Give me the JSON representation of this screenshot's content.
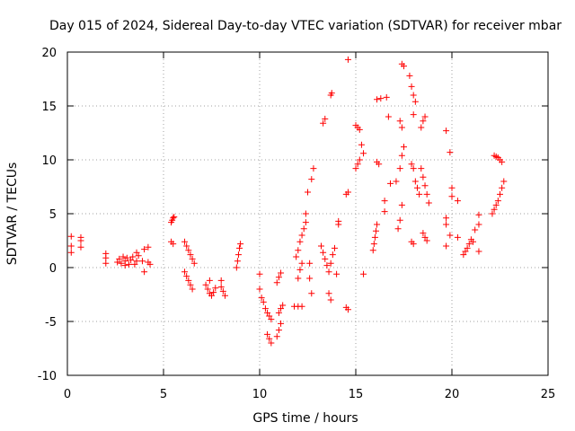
{
  "chart_data": {
    "type": "scatter",
    "title": "Day 015 of 2024, Sidereal Day-to-day VTEC variation (SDTVAR) for receiver mbar",
    "xlabel": "GPS time / hours",
    "ylabel": "SDTVAR / TECUs",
    "xlim": [
      0,
      25
    ],
    "ylim": [
      -10,
      20
    ],
    "xticks": [
      0,
      5,
      10,
      15,
      20,
      25
    ],
    "yticks": [
      -10,
      -5,
      0,
      5,
      10,
      15,
      20
    ],
    "grid": true,
    "marker": "+",
    "color": "#ff0000",
    "series": [
      {
        "name": "SDTVAR",
        "points": [
          [
            0.2,
            2.9
          ],
          [
            0.2,
            2.0
          ],
          [
            0.2,
            1.4
          ],
          [
            0.7,
            2.8
          ],
          [
            0.7,
            2.5
          ],
          [
            0.7,
            1.9
          ],
          [
            2.0,
            1.3
          ],
          [
            2.0,
            0.9
          ],
          [
            2.0,
            0.4
          ],
          [
            2.6,
            0.5
          ],
          [
            2.7,
            0.8
          ],
          [
            2.8,
            0.4
          ],
          [
            2.9,
            1.0
          ],
          [
            3.0,
            0.6
          ],
          [
            3.0,
            0.2
          ],
          [
            3.1,
            0.9
          ],
          [
            3.2,
            0.3
          ],
          [
            3.3,
            0.7
          ],
          [
            3.4,
            1.0
          ],
          [
            3.5,
            0.3
          ],
          [
            3.6,
            1.4
          ],
          [
            3.6,
            0.6
          ],
          [
            3.7,
            1.1
          ],
          [
            3.9,
            0.6
          ],
          [
            4.0,
            1.7
          ],
          [
            4.0,
            -0.4
          ],
          [
            4.2,
            1.9
          ],
          [
            4.2,
            0.5
          ],
          [
            4.3,
            0.3
          ],
          [
            5.4,
            4.2
          ],
          [
            5.45,
            4.4
          ],
          [
            5.5,
            4.6
          ],
          [
            5.55,
            4.7
          ],
          [
            5.4,
            2.4
          ],
          [
            5.5,
            2.2
          ],
          [
            6.1,
            2.4
          ],
          [
            6.2,
            2.0
          ],
          [
            6.3,
            1.6
          ],
          [
            6.4,
            1.2
          ],
          [
            6.5,
            0.8
          ],
          [
            6.6,
            0.4
          ],
          [
            6.1,
            -0.4
          ],
          [
            6.2,
            -0.8
          ],
          [
            6.3,
            -1.2
          ],
          [
            6.4,
            -1.6
          ],
          [
            6.5,
            -2.0
          ],
          [
            7.2,
            -1.6
          ],
          [
            7.3,
            -2.0
          ],
          [
            7.4,
            -2.4
          ],
          [
            7.5,
            -2.6
          ],
          [
            7.6,
            -2.3
          ],
          [
            7.7,
            -1.9
          ],
          [
            7.4,
            -1.2
          ],
          [
            8.0,
            -1.8
          ],
          [
            8.1,
            -2.2
          ],
          [
            8.2,
            -2.6
          ],
          [
            8.0,
            -1.2
          ],
          [
            8.8,
            0.0
          ],
          [
            8.85,
            0.6
          ],
          [
            8.9,
            1.2
          ],
          [
            8.95,
            1.8
          ],
          [
            9.0,
            2.2
          ],
          [
            10.0,
            -0.6
          ],
          [
            10.0,
            -2.0
          ],
          [
            10.1,
            -2.8
          ],
          [
            10.2,
            -3.2
          ],
          [
            10.3,
            -3.8
          ],
          [
            10.4,
            -4.2
          ],
          [
            10.5,
            -4.5
          ],
          [
            10.6,
            -4.8
          ],
          [
            10.4,
            -6.2
          ],
          [
            10.5,
            -6.6
          ],
          [
            10.6,
            -7.0
          ],
          [
            10.9,
            -6.4
          ],
          [
            11.0,
            -5.8
          ],
          [
            11.1,
            -5.2
          ],
          [
            11.0,
            -4.2
          ],
          [
            11.1,
            -3.8
          ],
          [
            11.2,
            -3.5
          ],
          [
            10.9,
            -1.4
          ],
          [
            11.0,
            -0.9
          ],
          [
            11.1,
            -0.5
          ],
          [
            11.8,
            -3.6
          ],
          [
            12.0,
            -3.6
          ],
          [
            12.2,
            -3.6
          ],
          [
            12.0,
            -1.0
          ],
          [
            12.1,
            -0.2
          ],
          [
            12.2,
            0.4
          ],
          [
            11.9,
            1.0
          ],
          [
            12.0,
            1.6
          ],
          [
            12.1,
            2.4
          ],
          [
            12.2,
            3.0
          ],
          [
            12.3,
            3.6
          ],
          [
            12.4,
            4.2
          ],
          [
            12.4,
            5.0
          ],
          [
            12.6,
            0.4
          ],
          [
            12.6,
            -1.0
          ],
          [
            12.7,
            -2.4
          ],
          [
            12.5,
            7.0
          ],
          [
            12.7,
            8.2
          ],
          [
            12.8,
            9.2
          ],
          [
            13.2,
            2.0
          ],
          [
            13.3,
            1.4
          ],
          [
            13.4,
            0.8
          ],
          [
            13.5,
            0.2
          ],
          [
            13.6,
            -0.4
          ],
          [
            13.7,
            0.4
          ],
          [
            13.6,
            -2.4
          ],
          [
            13.7,
            -3.0
          ],
          [
            13.8,
            1.2
          ],
          [
            13.9,
            1.8
          ],
          [
            14.0,
            -0.6
          ],
          [
            13.3,
            13.4
          ],
          [
            13.4,
            13.8
          ],
          [
            13.7,
            16.0
          ],
          [
            13.75,
            16.2
          ],
          [
            14.1,
            4.0
          ],
          [
            14.1,
            4.3
          ],
          [
            14.5,
            -3.7
          ],
          [
            14.6,
            -3.9
          ],
          [
            14.5,
            6.8
          ],
          [
            14.6,
            7.0
          ],
          [
            14.6,
            19.3
          ],
          [
            15.0,
            9.2
          ],
          [
            15.1,
            9.6
          ],
          [
            15.2,
            10.0
          ],
          [
            15.4,
            10.6
          ],
          [
            15.3,
            11.4
          ],
          [
            15.0,
            13.2
          ],
          [
            15.1,
            13.0
          ],
          [
            15.2,
            12.8
          ],
          [
            15.4,
            -0.6
          ],
          [
            15.9,
            1.6
          ],
          [
            15.95,
            2.2
          ],
          [
            16.0,
            2.8
          ],
          [
            16.05,
            3.4
          ],
          [
            16.1,
            4.0
          ],
          [
            16.1,
            9.8
          ],
          [
            16.2,
            9.6
          ],
          [
            16.3,
            15.7
          ],
          [
            16.5,
            5.2
          ],
          [
            16.5,
            6.2
          ],
          [
            16.6,
            15.8
          ],
          [
            16.8,
            7.8
          ],
          [
            16.1,
            15.6
          ],
          [
            16.7,
            14.0
          ],
          [
            17.1,
            8.0
          ],
          [
            17.2,
            3.6
          ],
          [
            17.3,
            4.4
          ],
          [
            17.4,
            5.8
          ],
          [
            17.3,
            9.2
          ],
          [
            17.4,
            10.4
          ],
          [
            17.5,
            11.2
          ],
          [
            17.3,
            13.6
          ],
          [
            17.4,
            13.0
          ],
          [
            17.4,
            18.9
          ],
          [
            17.5,
            18.7
          ],
          [
            17.8,
            17.8
          ],
          [
            17.9,
            16.8
          ],
          [
            18.0,
            16.0
          ],
          [
            18.1,
            15.4
          ],
          [
            18.0,
            14.2
          ],
          [
            17.9,
            2.4
          ],
          [
            18.0,
            2.2
          ],
          [
            17.9,
            9.6
          ],
          [
            18.0,
            9.2
          ],
          [
            18.1,
            8.0
          ],
          [
            18.2,
            7.4
          ],
          [
            18.3,
            6.8
          ],
          [
            18.4,
            13.0
          ],
          [
            18.5,
            13.6
          ],
          [
            18.6,
            14.0
          ],
          [
            18.4,
            9.2
          ],
          [
            18.5,
            8.4
          ],
          [
            18.6,
            7.6
          ],
          [
            18.7,
            6.8
          ],
          [
            18.8,
            6.0
          ],
          [
            18.5,
            3.2
          ],
          [
            18.6,
            2.8
          ],
          [
            18.7,
            2.5
          ],
          [
            19.7,
            12.7
          ],
          [
            19.7,
            4.6
          ],
          [
            19.7,
            4.0
          ],
          [
            19.7,
            2.0
          ],
          [
            19.9,
            3.0
          ],
          [
            19.9,
            10.7
          ],
          [
            20.0,
            7.4
          ],
          [
            20.0,
            6.6
          ],
          [
            20.3,
            6.2
          ],
          [
            20.3,
            2.8
          ],
          [
            20.6,
            1.2
          ],
          [
            20.7,
            1.5
          ],
          [
            20.8,
            1.8
          ],
          [
            20.9,
            2.2
          ],
          [
            21.0,
            2.6
          ],
          [
            21.1,
            2.4
          ],
          [
            21.2,
            3.5
          ],
          [
            21.4,
            4.9
          ],
          [
            21.4,
            4.0
          ],
          [
            21.4,
            1.5
          ],
          [
            22.1,
            5.0
          ],
          [
            22.2,
            5.4
          ],
          [
            22.3,
            5.8
          ],
          [
            22.4,
            6.2
          ],
          [
            22.5,
            6.8
          ],
          [
            22.6,
            7.4
          ],
          [
            22.7,
            8.0
          ],
          [
            22.2,
            10.4
          ],
          [
            22.3,
            10.3
          ],
          [
            22.4,
            10.2
          ],
          [
            22.5,
            10.0
          ],
          [
            22.6,
            9.8
          ]
        ]
      }
    ]
  }
}
